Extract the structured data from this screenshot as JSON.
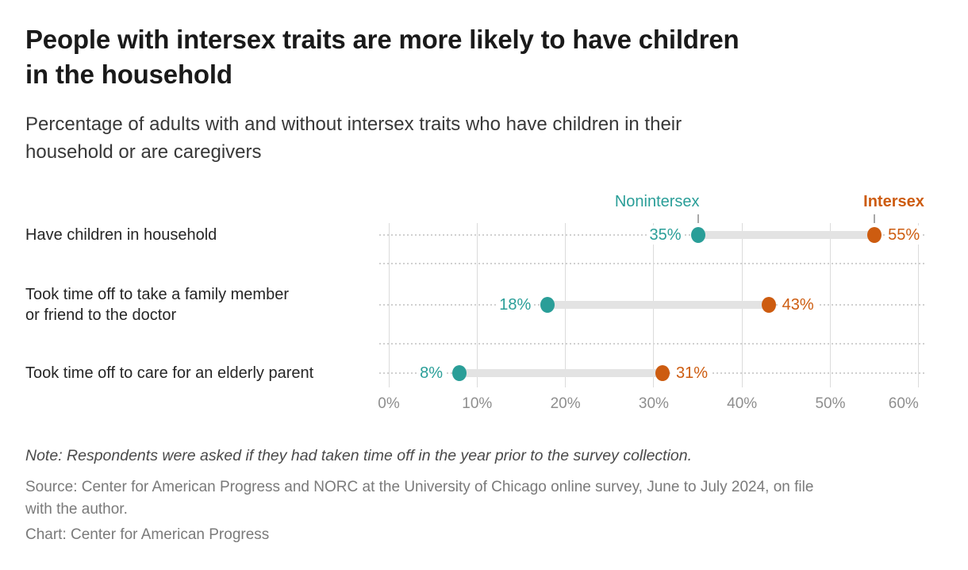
{
  "header": {
    "title": "People with intersex traits are more likely to have children in the household",
    "title_lines": [
      "People with intersex traits are more likely to have children",
      "in the household"
    ],
    "subtitle": "Percentage of adults with and without intersex traits who have children in their household or are caregivers",
    "subtitle_lines": [
      "Percentage of adults with and without intersex traits who have children in their",
      "household or are caregivers"
    ]
  },
  "legend": {
    "nonintersex_label": "Nonintersex",
    "intersex_label": "Intersex"
  },
  "axis": {
    "ticks": [
      "0%",
      "10%",
      "20%",
      "30%",
      "40%",
      "50%",
      "60%"
    ]
  },
  "rows": [
    {
      "category": "Have children in household",
      "category_lines": [
        "Have children in household"
      ],
      "nonintersex": 35,
      "intersex": 55,
      "nonintersex_label": "35%",
      "intersex_label": "55%"
    },
    {
      "category": "Took time off to take a family member or friend to the doctor",
      "category_lines": [
        "Took time off to take a family member",
        "or friend to the doctor"
      ],
      "nonintersex": 18,
      "intersex": 43,
      "nonintersex_label": "18%",
      "intersex_label": "43%"
    },
    {
      "category": "Took time off to care for an elderly parent",
      "category_lines": [
        "Took time off to care for an elderly parent"
      ],
      "nonintersex": 8,
      "intersex": 31,
      "nonintersex_label": "8%",
      "intersex_label": "31%"
    }
  ],
  "chart_data": {
    "type": "dumbbell",
    "title": "People with intersex traits are more likely to have children in the household",
    "subtitle": "Percentage of adults with and without intersex traits who have children in their household or are caregivers",
    "categories": [
      "Have children in household",
      "Took time off to take a family member or friend to the doctor",
      "Took time off to care for an elderly parent"
    ],
    "series": [
      {
        "name": "Nonintersex",
        "values": [
          35,
          18,
          8
        ],
        "color": "#2A9E98"
      },
      {
        "name": "Intersex",
        "values": [
          55,
          43,
          31
        ],
        "color": "#CD5C10"
      }
    ],
    "unit": "%",
    "x_ticks": [
      "0%",
      "10%",
      "20%",
      "30%",
      "40%",
      "50%",
      "60%"
    ],
    "xlim": [
      0,
      62
    ],
    "grid": {
      "vertical": "solid",
      "horizontal": "dotted"
    },
    "legend_position": "top, anchored above first-row dots"
  },
  "colors": {
    "teal": "#2A9E98",
    "orange": "#CD5C10",
    "bar_connector": "#E3E3E3",
    "vertical_gridline": "#DBDBDB",
    "dotted_gridline": "#D0D0D0",
    "axis_label": "#8E8E8E",
    "legend_tick": "#A8A8A8",
    "title_text": "#1A1A1A",
    "subtitle_text": "#383838",
    "category_label": "#262626",
    "note_text": "#4A4A4A",
    "source_text": "#7A7A7A",
    "background": "#FFFFFF"
  },
  "footer": {
    "note": "Note: Respondents were asked if they had taken time off in the year prior to the survey collection.",
    "source": "Source: Center for American Progress and NORC at the University of Chicago online survey, June to July 2024, on file with the author.",
    "source_lines": [
      "Source: Center for American Progress and NORC at the University of Chicago online survey, June to July 2024, on file",
      "with the author."
    ],
    "credit": "Chart: Center for American Progress"
  }
}
